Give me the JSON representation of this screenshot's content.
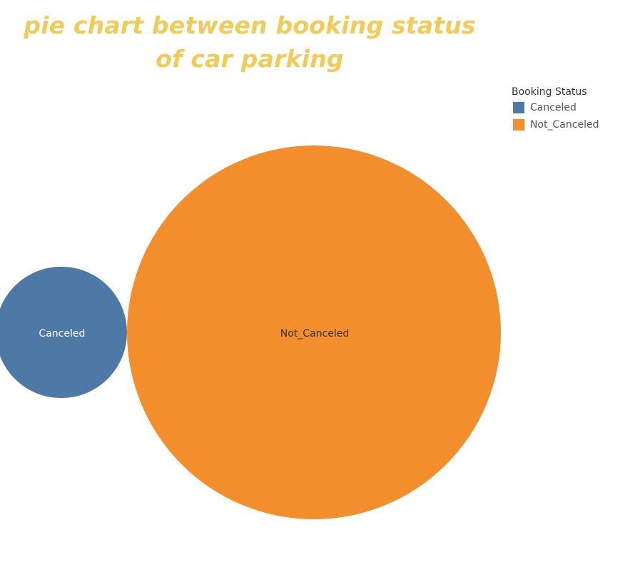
{
  "chart_data": {
    "type": "packed-bubble",
    "title": "pie chart between booking status of car parking",
    "title_color": "#F2CB57",
    "legend": {
      "title": "Booking Status",
      "placement": "top-right"
    },
    "categories": [
      "Canceled",
      "Not_Canceled"
    ],
    "values": [
      11,
      89
    ],
    "colors": [
      "#4E79A7",
      "#F28E2B"
    ],
    "label_colors": [
      "#FFFFFF",
      "#333333"
    ]
  }
}
